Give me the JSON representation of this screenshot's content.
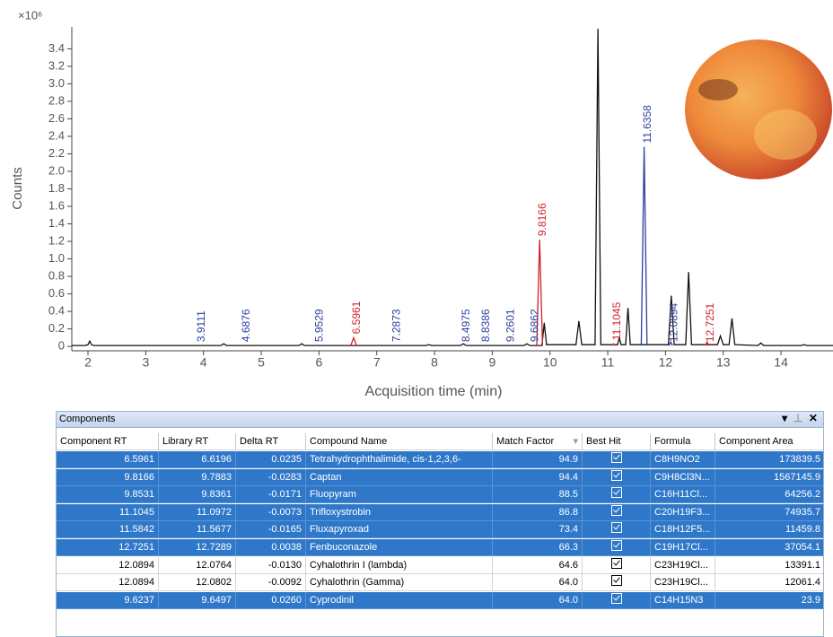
{
  "chart_data": {
    "type": "line",
    "y_multiplier": "×10⁶",
    "y_label": "Counts",
    "x_label": "Acquisition time (min)",
    "xlim": [
      1.72,
      14.9
    ],
    "xticks": [
      2,
      3,
      4,
      5,
      6,
      7,
      8,
      9,
      10,
      11,
      12,
      13,
      14
    ],
    "ylim": [
      -0.05,
      3.65
    ],
    "yticks": [
      0,
      0.2,
      0.4,
      0.6,
      0.8,
      {
        "value": 1,
        "label": "1.0"
      },
      1.2,
      1.4,
      1.6,
      1.8,
      {
        "value": 2,
        "label": "2.0"
      },
      2.2,
      2.4,
      2.6,
      2.8,
      {
        "value": 3,
        "label": "3.0"
      },
      3.2,
      3.4
    ],
    "series": [
      {
        "color": "#111111",
        "x": [
          1.72,
          1.95,
          2.0,
          2.03,
          2.06,
          2.1,
          4.3,
          4.35,
          4.4,
          5.65,
          5.7,
          5.75,
          7.85,
          7.9,
          7.95,
          8.45,
          8.5,
          8.55,
          9.55,
          9.6,
          9.65,
          9.86,
          9.9,
          9.94,
          10.45,
          10.5,
          10.55,
          10.78,
          10.83,
          10.88,
          11.17,
          11.2,
          11.23,
          11.31,
          11.35,
          11.39,
          12.05,
          12.1,
          12.15,
          12.35,
          12.4,
          12.45,
          12.9,
          12.95,
          13.0,
          13.1,
          13.15,
          13.2,
          13.6,
          13.65,
          13.7,
          14.35,
          14.4,
          14.45,
          14.9
        ],
        "values": [
          0.01,
          0.01,
          0.02,
          0.06,
          0.02,
          0.01,
          0.01,
          0.03,
          0.01,
          0.01,
          0.03,
          0.01,
          0.01,
          0.02,
          0.01,
          0.01,
          0.03,
          0.01,
          0.01,
          0.03,
          0.01,
          0.01,
          0.27,
          0.02,
          0.02,
          0.29,
          0.02,
          0.02,
          3.63,
          0.02,
          0.02,
          0.1,
          0.02,
          0.02,
          0.44,
          0.02,
          0.02,
          0.58,
          0.02,
          0.02,
          0.85,
          0.02,
          0.02,
          0.12,
          0.02,
          0.02,
          0.32,
          0.02,
          0.01,
          0.04,
          0.01,
          0.01,
          0.02,
          0.01,
          0.01
        ]
      },
      {
        "color": "#d0202a",
        "x": [
          6.55,
          6.6,
          6.65,
          8,
          9.77,
          9.82,
          9.87,
          10.5,
          11.07,
          11.1,
          11.13,
          12,
          12.69,
          12.72,
          12.75
        ],
        "values": [
          0.01,
          0.1,
          0.01,
          null,
          0.01,
          1.22,
          0.01,
          null,
          0.01,
          0.03,
          0.01,
          null,
          0.01,
          0.05,
          0.01
        ]
      },
      {
        "color": "#2d3f9c",
        "x": [
          11.58,
          11.63,
          11.68,
          11.9,
          12.06,
          12.09,
          12.12
        ],
        "values": [
          0.01,
          2.28,
          0.01,
          null,
          0.01,
          0.05,
          0.01
        ]
      }
    ],
    "annotations": [
      {
        "text": "3.9111",
        "x": 3.9111,
        "y": 0.01,
        "color": "#2d3f9c"
      },
      {
        "text": "4.6876",
        "x": 4.6876,
        "y": 0.01,
        "color": "#2d3f9c"
      },
      {
        "text": "5.9529",
        "x": 5.9529,
        "y": 0.01,
        "color": "#2d3f9c"
      },
      {
        "text": "6.5961",
        "x": 6.5961,
        "y": 0.1,
        "color": "#d0202a"
      },
      {
        "text": "7.2873",
        "x": 7.2873,
        "y": 0.01,
        "color": "#2d3f9c"
      },
      {
        "text": "8.4975",
        "x": 8.4975,
        "y": 0.01,
        "color": "#2d3f9c"
      },
      {
        "text": "8.8386",
        "x": 8.8386,
        "y": 0.01,
        "color": "#2d3f9c"
      },
      {
        "text": "9.2601",
        "x": 9.2601,
        "y": 0.01,
        "color": "#2d3f9c"
      },
      {
        "text": "9.6862",
        "x": 9.6862,
        "y": 0.01,
        "color": "#2d3f9c"
      },
      {
        "text": "9.8166",
        "x": 9.8166,
        "y": 1.22,
        "color": "#d0202a"
      },
      {
        "text": "11.1045",
        "x": 11.1045,
        "y": 0.03,
        "color": "#d0202a"
      },
      {
        "text": "11.6358",
        "x": 11.6358,
        "y": 2.28,
        "color": "#2d3f9c"
      },
      {
        "text": "12.0894",
        "x": 12.0894,
        "y": 0.01,
        "color": "#2d3f9c"
      },
      {
        "text": "12.7251",
        "x": 12.7251,
        "y": 0.01,
        "color": "#d0202a"
      }
    ]
  },
  "table": {
    "title": "Components",
    "columns": [
      "Component RT",
      "Library RT",
      "Delta RT",
      "Compound Name",
      "Match Factor",
      "Best Hit",
      "Formula",
      "Component Area"
    ],
    "rows": [
      [
        "6.5961",
        "6.6196",
        "0.0235",
        "Tetrahydrophthalimide, cis-1,2,3,6-",
        "94.9",
        true,
        "C8H9NO2",
        "173839.5"
      ],
      [
        "9.8166",
        "9.7883",
        "-0.0283",
        "Captan",
        "94.4",
        true,
        "C9H8Cl3N...",
        "1567145.9"
      ],
      [
        "9.8531",
        "9.8361",
        "-0.0171",
        "Fluopyram",
        "88.5",
        true,
        "C16H11Cl...",
        "64256.2"
      ],
      [
        "11.1045",
        "11.0972",
        "-0.0073",
        "Trifloxystrobin",
        "86.8",
        true,
        "C20H19F3...",
        "74935.7"
      ],
      [
        "11.5842",
        "11.5677",
        "-0.0165",
        "Fluxapyroxad",
        "73.4",
        true,
        "C18H12F5...",
        "11459.8"
      ],
      [
        "12.7251",
        "12.7289",
        "0.0038",
        "Fenbuconazole",
        "66.3",
        true,
        "C19H17Cl...",
        "37054.1"
      ],
      [
        "12.0894",
        "12.0764",
        "-0.0130",
        "Cyhalothrin I (lambda)",
        "64.6",
        true,
        "C23H19Cl...",
        "13391.1"
      ],
      [
        "12.0894",
        "12.0802",
        "-0.0092",
        "Cyhalothrin (Gamma)",
        "64.0",
        true,
        "C23H19Cl...",
        "12061.4"
      ],
      [
        "9.6237",
        "9.6497",
        "0.0260",
        "Cyprodinil",
        "64.0",
        true,
        "C14H15N3",
        "23.9"
      ]
    ],
    "selected_rows": [
      0,
      1,
      2,
      3,
      4,
      5,
      8
    ]
  }
}
